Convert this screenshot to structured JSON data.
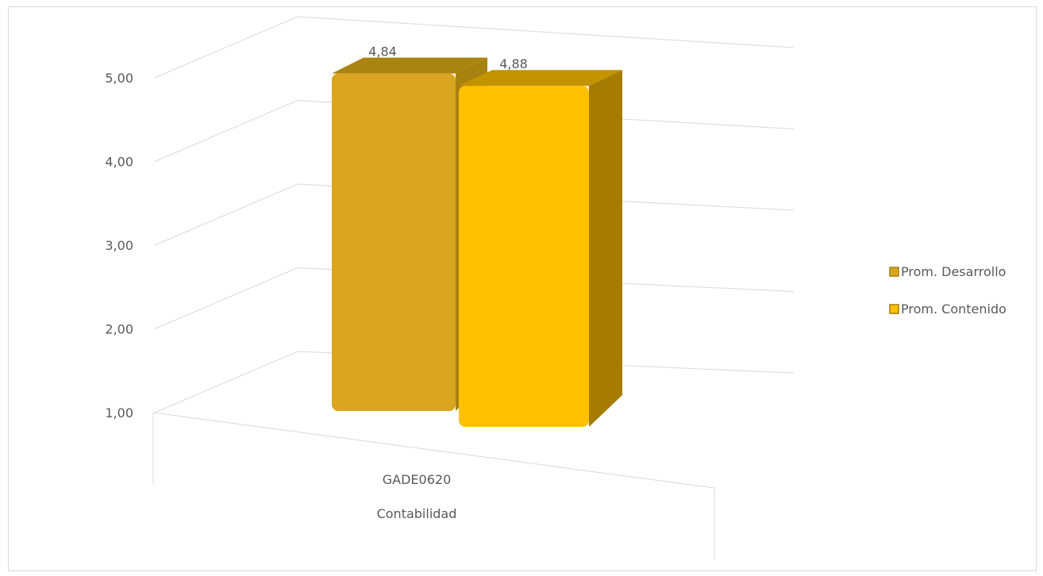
{
  "chart_data": {
    "type": "bar",
    "view": "3d-column",
    "categories": [
      [
        "GADE0620",
        "Contabilidad"
      ]
    ],
    "series": [
      {
        "name": "Prom. Desarrollo",
        "values": [
          4.84
        ],
        "data_labels": [
          "4,84"
        ]
      },
      {
        "name": "Prom. Contenido",
        "values": [
          4.88
        ],
        "data_labels": [
          "4,88"
        ]
      }
    ],
    "ylim": [
      1,
      5
    ],
    "yticks": [
      "1,00",
      "2,00",
      "3,00",
      "4,00",
      "5,00"
    ],
    "grid": true,
    "legend": "right",
    "xlabel": "",
    "ylabel": "",
    "title": ""
  },
  "colors": {
    "series_front": [
      "#DAA520",
      "#FFC000"
    ],
    "series_top": [
      "#AA8410",
      "#C49300"
    ],
    "series_side": [
      "#A88210",
      "#A67C00"
    ],
    "grid": "#D9D9D9",
    "text": "#595959",
    "frame": "#D9D9D9"
  }
}
